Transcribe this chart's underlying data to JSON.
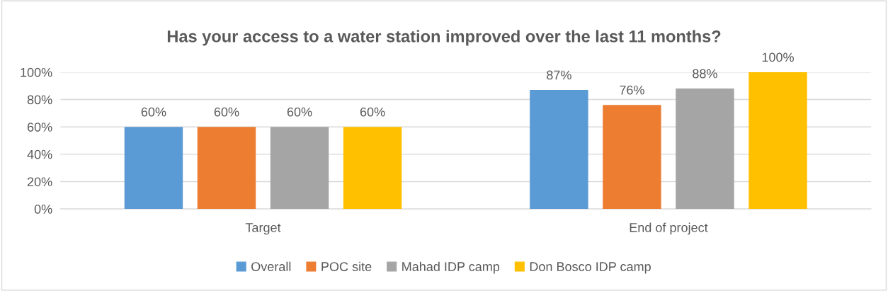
{
  "chart_data": {
    "type": "bar",
    "title": "Has your access to a water station improved over the last 11 months?",
    "categories": [
      "Target",
      "End of project"
    ],
    "series": [
      {
        "name": "Overall",
        "color": "#5b9bd5",
        "values": [
          60,
          87
        ]
      },
      {
        "name": "POC site",
        "color": "#ed7d31",
        "values": [
          60,
          76
        ]
      },
      {
        "name": "Mahad IDP camp",
        "color": "#a5a5a5",
        "values": [
          60,
          88
        ]
      },
      {
        "name": "Don Bosco IDP camp",
        "color": "#ffc000",
        "values": [
          60,
          100
        ]
      }
    ],
    "ylim": [
      0,
      100
    ],
    "yticks": [
      {
        "value": 0,
        "label": "0%"
      },
      {
        "value": 20,
        "label": "20%"
      },
      {
        "value": 40,
        "label": "40%"
      },
      {
        "value": 60,
        "label": "60%"
      },
      {
        "value": 80,
        "label": "80%"
      },
      {
        "value": 100,
        "label": "100%"
      }
    ],
    "grid": "y",
    "legend": "bottom",
    "value_labels": [
      [
        "60%",
        "87%"
      ],
      [
        "60%",
        "76%"
      ],
      [
        "60%",
        "88%"
      ],
      [
        "60%",
        "100%"
      ]
    ]
  }
}
